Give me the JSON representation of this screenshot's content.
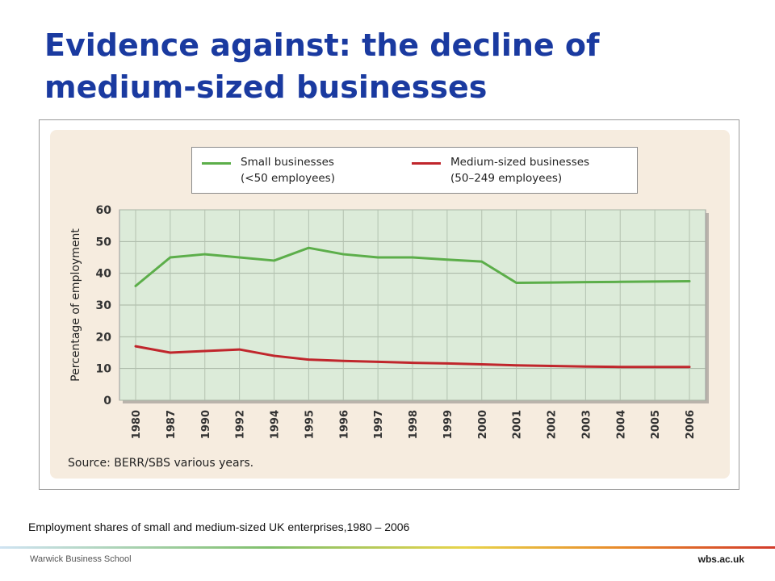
{
  "slide": {
    "title": "Evidence against: the decline of medium-sized businesses",
    "caption": "Employment shares of small and medium-sized UK enterprises,1980 – 2006",
    "footer_left": "Warwick Business School",
    "footer_right": "wbs.ac.uk",
    "title_color": "#1a3aa0"
  },
  "chart_data": {
    "type": "line",
    "title": "",
    "source": "Source: BERR/SBS various years.",
    "xlabel": "",
    "ylabel": "Percentage of employment",
    "categories": [
      "1980",
      "1987",
      "1990",
      "1992",
      "1994",
      "1995",
      "1996",
      "1997",
      "1998",
      "1999",
      "2000",
      "2001",
      "2002",
      "2003",
      "2004",
      "2005",
      "2006"
    ],
    "ylim": [
      0,
      60
    ],
    "yticks": [
      0,
      10,
      20,
      30,
      40,
      50,
      60
    ],
    "grid": true,
    "plot_background": "#dcebd9",
    "legend_position": "top",
    "series": [
      {
        "name": "Small businesses",
        "name_line2": "(<50 employees)",
        "color": "#5cae4a",
        "values": [
          36,
          45,
          46,
          45,
          44,
          48,
          46,
          45,
          45,
          44.3,
          43.7,
          37,
          37.1,
          37.2,
          37.3,
          37.4,
          37.5
        ]
      },
      {
        "name": "Medium-sized businesses",
        "name_line2": "(50–249 employees)",
        "color": "#c0262c",
        "values": [
          17,
          15,
          15.5,
          16,
          14,
          12.8,
          12.4,
          12.1,
          11.8,
          11.6,
          11.3,
          11.0,
          10.8,
          10.6,
          10.5,
          10.5,
          10.5
        ]
      }
    ]
  }
}
